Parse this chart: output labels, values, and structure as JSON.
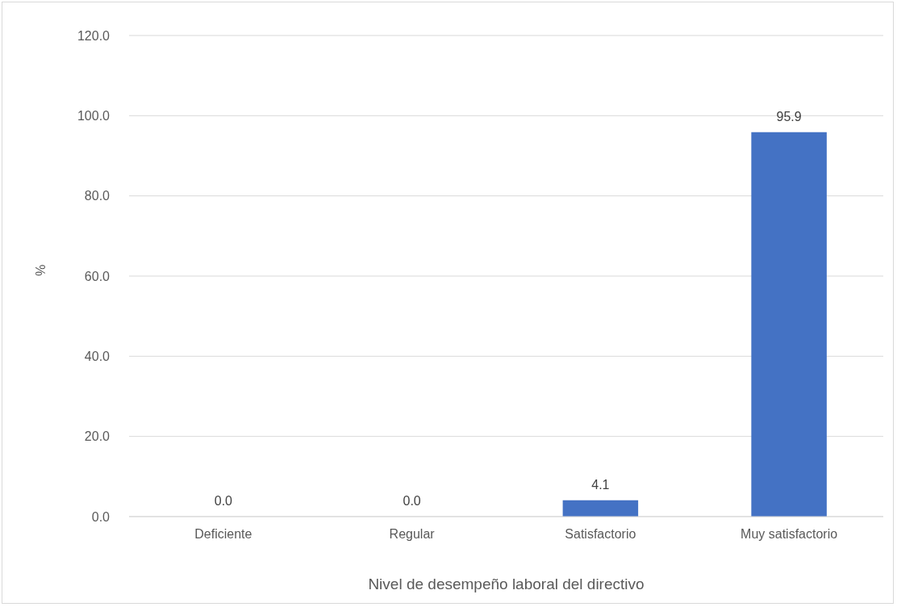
{
  "chart_data": {
    "type": "bar",
    "xlabel": "Nivel de desempeño laboral del directivo",
    "ylabel": "%",
    "categories": [
      "Deficiente",
      "Regular",
      "Satisfactorio",
      "Muy satisfactorio"
    ],
    "values": [
      0,
      0,
      4.1,
      95.9
    ],
    "color": "#4472c4",
    "value_labels": [
      "0.0",
      "0.0",
      "4.1",
      "95.9"
    ],
    "ylim": [
      0,
      120
    ],
    "yticks": [
      {
        "value": 0,
        "label": "0.0"
      },
      {
        "value": 20,
        "label": "20.0"
      },
      {
        "value": 40,
        "label": "40.0"
      },
      {
        "value": 60,
        "label": "60.0"
      },
      {
        "value": 80,
        "label": "80.0"
      },
      {
        "value": 100,
        "label": "100.0"
      },
      {
        "value": 120,
        "label": "120.0"
      }
    ],
    "grid": "y",
    "legend": false
  }
}
